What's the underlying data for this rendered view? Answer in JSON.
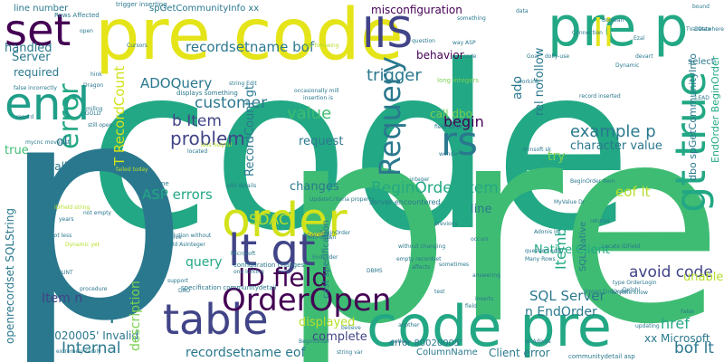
{
  "palette": {
    "green": "#22a884",
    "lime": "#b5de2b",
    "teal": "#2a788e",
    "indigo": "#414487",
    "purple": "#440154",
    "lightgreen": "#7ad151",
    "yellow": "#fde725",
    "midgreen": "#3fbc73",
    "seagreen": "#1f9e89"
  },
  "words": [
    {
      "text": "code",
      "color": "#22a884"
    },
    {
      "text": "pre",
      "color": "#3fbc73"
    },
    {
      "text": "p",
      "color": "#2a788e"
    },
    {
      "text": "pre code",
      "color": "#e4e419"
    },
    {
      "text": "pre p",
      "color": "#22a884"
    },
    {
      "text": "code pre",
      "color": "#22a884"
    },
    {
      "text": "set",
      "color": "#440154"
    },
    {
      "text": "IIS",
      "color": "#414487"
    },
    {
      "text": "end",
      "color": "#1f9e89"
    },
    {
      "text": "order",
      "color": "#d2e21b"
    },
    {
      "text": "lt gt",
      "color": "#414487"
    },
    {
      "text": "table",
      "color": "#414487"
    },
    {
      "text": "OrderOpen",
      "color": "#440154"
    },
    {
      "text": "ID field",
      "color": "#440154"
    },
    {
      "text": "rs",
      "color": "#2a788e"
    },
    {
      "text": "li",
      "color": "#e4e419"
    },
    {
      "text": "gt true",
      "color": "#22a884"
    },
    {
      "text": "error",
      "color": "#22a884"
    },
    {
      "text": "Requery",
      "color": "#2a788e"
    },
    {
      "text": "ADOQuery",
      "color": "#2a788e"
    },
    {
      "text": "trigger",
      "color": "#2a788e"
    },
    {
      "text": "recordsetname bof",
      "color": "#2a788e"
    },
    {
      "text": "misconfiguration",
      "color": "#440154"
    },
    {
      "text": "behavior",
      "color": "#440154"
    },
    {
      "text": "begin",
      "color": "#440154"
    },
    {
      "text": "true",
      "color": "#3fbc73"
    },
    {
      "text": "handled",
      "color": "#2a788e"
    },
    {
      "text": "Server",
      "color": "#2a788e"
    },
    {
      "text": "required",
      "color": "#2a788e"
    },
    {
      "text": "customer",
      "color": "#2a788e"
    },
    {
      "text": "value",
      "color": "#3fbc73"
    },
    {
      "text": "b Item",
      "color": "#414487"
    },
    {
      "text": "problem",
      "color": "#414487"
    },
    {
      "text": "example p",
      "color": "#2a788e"
    },
    {
      "text": "character value",
      "color": "#2a788e"
    },
    {
      "text": "call dbo",
      "color": "#7ad151"
    },
    {
      "text": "try",
      "color": "#7ad151"
    },
    {
      "text": "BeginOrder Item",
      "color": "#22a884"
    },
    {
      "text": "SDAC",
      "color": "#b5de2b"
    },
    {
      "text": "ASP errors",
      "color": "#22a884"
    },
    {
      "text": "changes",
      "color": "#2a788e"
    },
    {
      "text": "request",
      "color": "#2a788e"
    },
    {
      "text": "eof lt",
      "color": "#b5de2b"
    },
    {
      "text": "line",
      "color": "#2a788e"
    },
    {
      "text": "query",
      "color": "#22a884"
    },
    {
      "text": "avoid code",
      "color": "#414487"
    },
    {
      "text": "SQL Server",
      "color": "#2a788e"
    },
    {
      "text": "n EndOrder",
      "color": "#2a788e"
    },
    {
      "text": "href",
      "color": "#22a884"
    },
    {
      "text": "bof lt",
      "color": "#2a788e"
    },
    {
      "text": "Item n",
      "color": "#414487"
    },
    {
      "text": "Internal",
      "color": "#2a788e"
    },
    {
      "text": "80020005' Invalid",
      "color": "#2a788e"
    },
    {
      "text": "description",
      "color": "#7ad151"
    },
    {
      "text": "displayed",
      "color": "#b5de2b"
    },
    {
      "text": "complete",
      "color": "#414487"
    },
    {
      "text": "recordsetname eof",
      "color": "#2a788e"
    },
    {
      "text": "error 80020005'",
      "color": "#2a788e"
    },
    {
      "text": "ColumnName",
      "color": "#2a788e"
    },
    {
      "text": "Client error",
      "color": "#2a788e"
    },
    {
      "text": "Invalid character",
      "color": "#2a788e"
    },
    {
      "text": "line number",
      "color": "#2a788e"
    },
    {
      "text": "ado",
      "color": "#2a788e"
    },
    {
      "text": "rel nofollow",
      "color": "#2a788e"
    },
    {
      "text": "select",
      "color": "#2a788e"
    },
    {
      "text": "T RecordCount",
      "color": "#d2e21b"
    },
    {
      "text": "RecordCount gt",
      "color": "#2a788e"
    },
    {
      "text": "openrecordset SQLString",
      "color": "#2a788e"
    },
    {
      "text": "ol",
      "color": "#2a788e"
    },
    {
      "text": "T",
      "color": "#2a788e"
    },
    {
      "text": "Itemb",
      "color": "#22a884"
    },
    {
      "text": "dbo spGetCommunityInfo",
      "color": "#2a788e"
    },
    {
      "text": "EndOrder BeginOrder",
      "color": "#22a884"
    },
    {
      "text": "unable",
      "color": "#b5de2b"
    },
    {
      "text": "xx Microsoft",
      "color": "#2a788e"
    },
    {
      "text": "Native Client",
      "color": "#22a884"
    },
    {
      "text": "cast specification",
      "color": "#2a788e"
    },
    {
      "text": "spGetCommunityInfo xx",
      "color": "#2a788e"
    },
    {
      "text": "trigger inserting",
      "color": "#2a788e"
    },
    {
      "text": "Rows Affected",
      "color": "#2a788e"
    },
    {
      "text": "long integers",
      "color": "#7ad151"
    },
    {
      "text": "SQL Native",
      "color": "#2a788e"
    },
    {
      "text": "displays something",
      "color": "#2a788e"
    },
    {
      "text": "configuration changes",
      "color": "#2a788e"
    },
    {
      "text": "specification communitydetail",
      "color": "#2a788e"
    },
    {
      "text": "communitydetail asp",
      "color": "#2a788e"
    },
    {
      "text": "server encountered",
      "color": "#2a788e"
    },
    {
      "text": "first time",
      "color": "#2a788e"
    },
    {
      "text": "solution without",
      "color": "#2a788e"
    },
    {
      "text": "add details",
      "color": "#2a788e"
    },
    {
      "text": "IDField AsInteger",
      "color": "#2a788e"
    },
    {
      "text": "Locate IDField",
      "color": "#2a788e"
    },
    {
      "text": "record inserted",
      "color": "#2a788e"
    },
    {
      "text": "false incorrectly",
      "color": "#2a788e"
    },
    {
      "text": "lot less",
      "color": "#2a788e"
    },
    {
      "text": "Dynamic yet",
      "color": "#b5de2b"
    },
    {
      "text": "without changing",
      "color": "#2a788e"
    },
    {
      "text": "empty recordset",
      "color": "#2a788e"
    },
    {
      "text": "question now",
      "color": "#2a788e"
    },
    {
      "text": "Many Rows",
      "color": "#2a788e"
    },
    {
      "text": "anyone know",
      "color": "#2a788e"
    },
    {
      "text": "type OrderLogin",
      "color": "#2a788e"
    },
    {
      "text": "Delphi",
      "color": "#2a788e"
    },
    {
      "text": "procedure",
      "color": "#2a788e"
    },
    {
      "text": "extremely rarely",
      "color": "#2a788e"
    },
    {
      "text": "string var",
      "color": "#2a788e"
    },
    {
      "text": "BeginOrder",
      "color": "#2a788e"
    },
    {
      "text": "years",
      "color": "#2a788e"
    },
    {
      "text": "IDField string",
      "color": "#b5de2b"
    },
    {
      "text": "still",
      "color": "#2a788e"
    },
    {
      "text": "DAO",
      "color": "#2a788e"
    },
    {
      "text": "Microsoft",
      "color": "#2a788e"
    },
    {
      "text": "one lurking",
      "color": "#2a788e"
    },
    {
      "text": "False",
      "color": "#2a788e"
    },
    {
      "text": "Adonis Int",
      "color": "#2a788e"
    },
    {
      "text": "sk Adonis",
      "color": "#2a788e"
    },
    {
      "text": "MyValue Dr",
      "color": "#2a788e"
    },
    {
      "text": "returns",
      "color": "#2a788e"
    },
    {
      "text": "occasionally mill",
      "color": "#2a788e"
    },
    {
      "text": "insertion is",
      "color": "#2a788e"
    },
    {
      "text": "minsoft sk",
      "color": "#2a788e"
    },
    {
      "text": "integer",
      "color": "#2a788e"
    },
    {
      "text": "Boolean",
      "color": "#2a788e"
    },
    {
      "text": "Connection",
      "color": "#2a788e"
    },
    {
      "text": "question",
      "color": "#2a788e"
    },
    {
      "text": "way ASP",
      "color": "#2a788e"
    },
    {
      "text": "use following",
      "color": "#b5de2b"
    },
    {
      "text": "Cursors",
      "color": "#2a788e"
    },
    {
      "text": "string Edit",
      "color": "#2a788e"
    },
    {
      "text": "BeginOrder Item",
      "color": "#2a788e"
    },
    {
      "text": "TVarData",
      "color": "#2a788e"
    },
    {
      "text": "bound",
      "color": "#2a788e"
    },
    {
      "text": "open",
      "color": "#2a788e"
    },
    {
      "text": "record",
      "color": "#2a788e"
    },
    {
      "text": "millng",
      "color": "#2a788e"
    },
    {
      "text": "hink",
      "color": "#2a788e"
    },
    {
      "text": "Datawhere",
      "color": "#2a788e"
    },
    {
      "text": "failed today",
      "color": "#b5de2b"
    },
    {
      "text": "mycnc movelast",
      "color": "#2a788e"
    },
    {
      "text": "located",
      "color": "#2a788e"
    },
    {
      "text": "less helpful",
      "color": "#b5de2b"
    },
    {
      "text": "UpdateCriteria property",
      "color": "#2a788e"
    },
    {
      "text": "ado doesn",
      "color": "#2a788e"
    },
    {
      "text": "BeginOrder",
      "color": "#2a788e"
    },
    {
      "text": "NOCOUNT",
      "color": "#2a788e"
    },
    {
      "text": "Recordset",
      "color": "#2a788e"
    },
    {
      "text": "strong EndOrder",
      "color": "#2a788e"
    },
    {
      "text": "DBMS",
      "color": "#2a788e"
    },
    {
      "text": "support",
      "color": "#2a788e"
    },
    {
      "text": "ADOQuery",
      "color": "#2a788e"
    },
    {
      "text": "data",
      "color": "#2a788e"
    },
    {
      "text": "code",
      "color": "#2a788e"
    },
    {
      "text": "Goal",
      "color": "#2a788e"
    },
    {
      "text": "something",
      "color": "#2a788e"
    },
    {
      "text": "devart",
      "color": "#2a788e"
    },
    {
      "text": "Dynamic",
      "color": "#2a788e"
    },
    {
      "text": "working",
      "color": "#2a788e"
    },
    {
      "text": "previous",
      "color": "#2a788e"
    },
    {
      "text": "field",
      "color": "#2a788e"
    },
    {
      "text": "test",
      "color": "#2a788e"
    },
    {
      "text": "inserts",
      "color": "#2a788e"
    },
    {
      "text": "affects",
      "color": "#2a788e"
    },
    {
      "text": "getlog",
      "color": "#2a788e"
    },
    {
      "text": "another",
      "color": "#2a788e"
    },
    {
      "text": "give",
      "color": "#2a788e"
    },
    {
      "text": "sometimes",
      "color": "#2a788e"
    },
    {
      "text": "answering",
      "color": "#2a788e"
    },
    {
      "text": "occurs",
      "color": "#2a788e"
    },
    {
      "text": "updating",
      "color": "#2a788e"
    },
    {
      "text": "field value",
      "color": "#2a788e"
    },
    {
      "text": "EndOrder",
      "color": "#2a788e"
    },
    {
      "text": "believe",
      "color": "#2a788e"
    },
    {
      "text": "dolly-use",
      "color": "#2a788e"
    },
    {
      "text": "wonder",
      "color": "#2a788e"
    },
    {
      "text": "Dragon",
      "color": "#2a788e"
    },
    {
      "text": "GOLD",
      "color": "#2a788e"
    },
    {
      "text": "still open",
      "color": "#2a788e"
    },
    {
      "text": "not empty",
      "color": "#2a788e"
    },
    {
      "text": "xx",
      "color": "#2a788e"
    },
    {
      "text": "LEAD",
      "color": "#2a788e"
    },
    {
      "text": "Ezal",
      "color": "#2a788e"
    }
  ]
}
